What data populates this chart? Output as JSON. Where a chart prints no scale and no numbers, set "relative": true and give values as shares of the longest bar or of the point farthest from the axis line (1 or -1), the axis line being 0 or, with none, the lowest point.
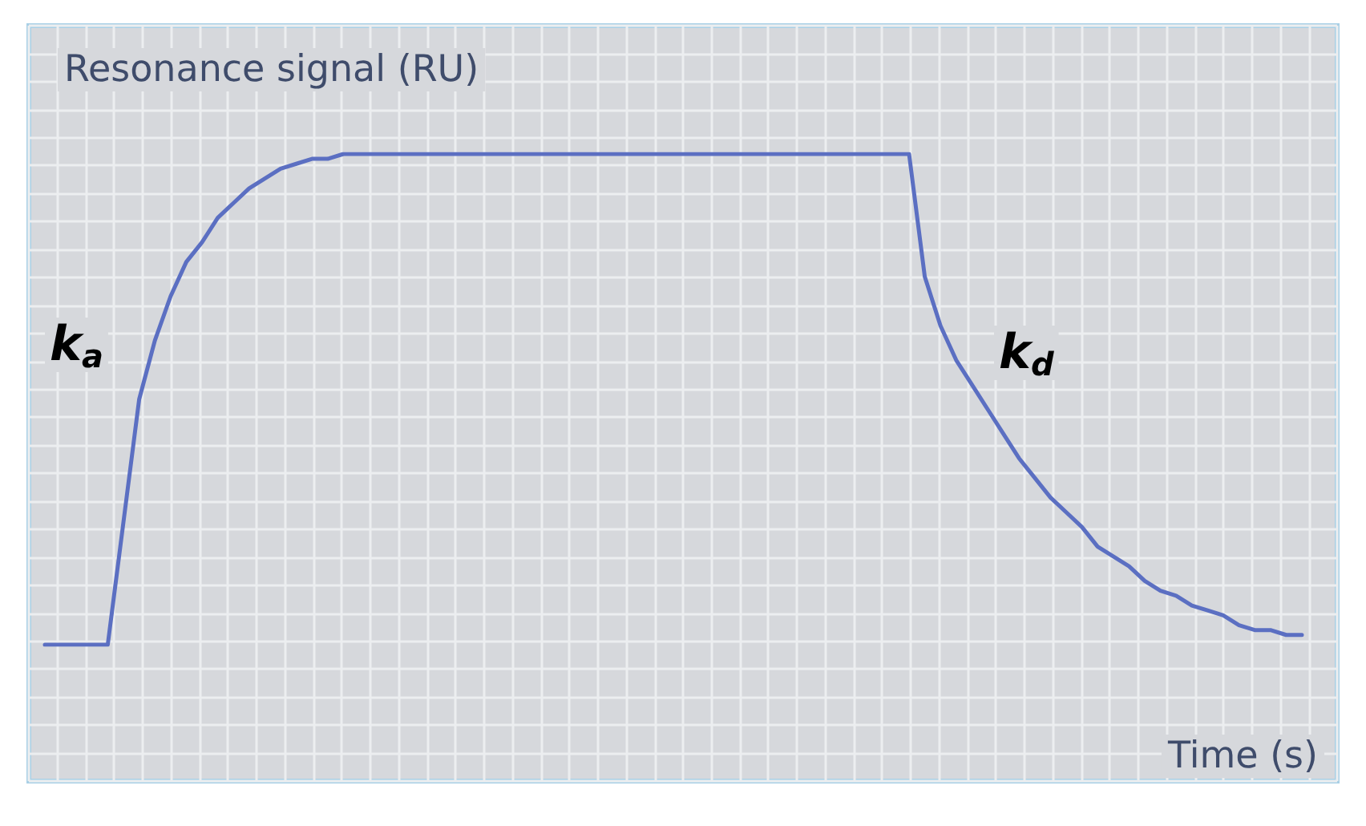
{
  "chart_data": {
    "type": "line",
    "relative": true,
    "ylabel": "Resonance signal (RU)",
    "xlabel": "Time (s)",
    "annotations": [
      "k$_{a}$",
      "k$_{d}$"
    ],
    "grid": true,
    "marker": "none",
    "line_style": "solid",
    "categories": [
      null,
      null,
      null,
      null,
      null,
      null,
      null,
      null,
      null,
      null,
      null,
      null,
      null,
      null,
      null,
      null,
      null,
      null,
      null,
      null,
      null,
      null,
      null,
      null,
      null,
      null,
      null,
      null,
      null,
      null,
      null,
      null,
      null,
      null,
      null,
      null,
      null,
      null,
      null,
      null,
      null,
      null,
      null,
      null,
      null,
      null,
      null,
      null,
      null,
      null,
      null,
      null,
      null,
      null,
      null,
      null,
      null,
      null,
      null,
      null,
      null,
      null,
      null,
      null,
      null,
      null,
      null,
      null,
      null,
      null,
      null,
      null,
      null,
      null,
      null,
      null,
      null,
      null,
      null,
      null,
      null
    ],
    "series": [
      {
        "color": "#5b6fc2",
        "values": [
          0,
          0,
          0,
          0,
          0,
          0.25,
          0.5,
          0.62,
          0.71,
          0.78,
          0.82,
          0.87,
          0.9,
          0.93,
          0.95,
          0.97,
          0.98,
          0.99,
          0.99,
          1,
          1,
          1,
          1,
          1,
          1,
          1,
          1,
          1,
          1,
          1,
          1,
          1,
          1,
          1,
          1,
          1,
          1,
          1,
          1,
          1,
          1,
          1,
          1,
          1,
          1,
          1,
          1,
          1,
          1,
          1,
          1,
          1,
          1,
          1,
          1,
          1,
          0.75,
          0.65,
          0.58,
          0.53,
          0.48,
          0.43,
          0.38,
          0.34,
          0.3,
          0.27,
          0.24,
          0.2,
          0.18,
          0.16,
          0.13,
          0.11,
          0.1,
          0.08,
          0.07,
          0.06,
          0.04,
          0.03,
          0.03,
          0.02,
          0.02
        ]
      }
    ]
  }
}
